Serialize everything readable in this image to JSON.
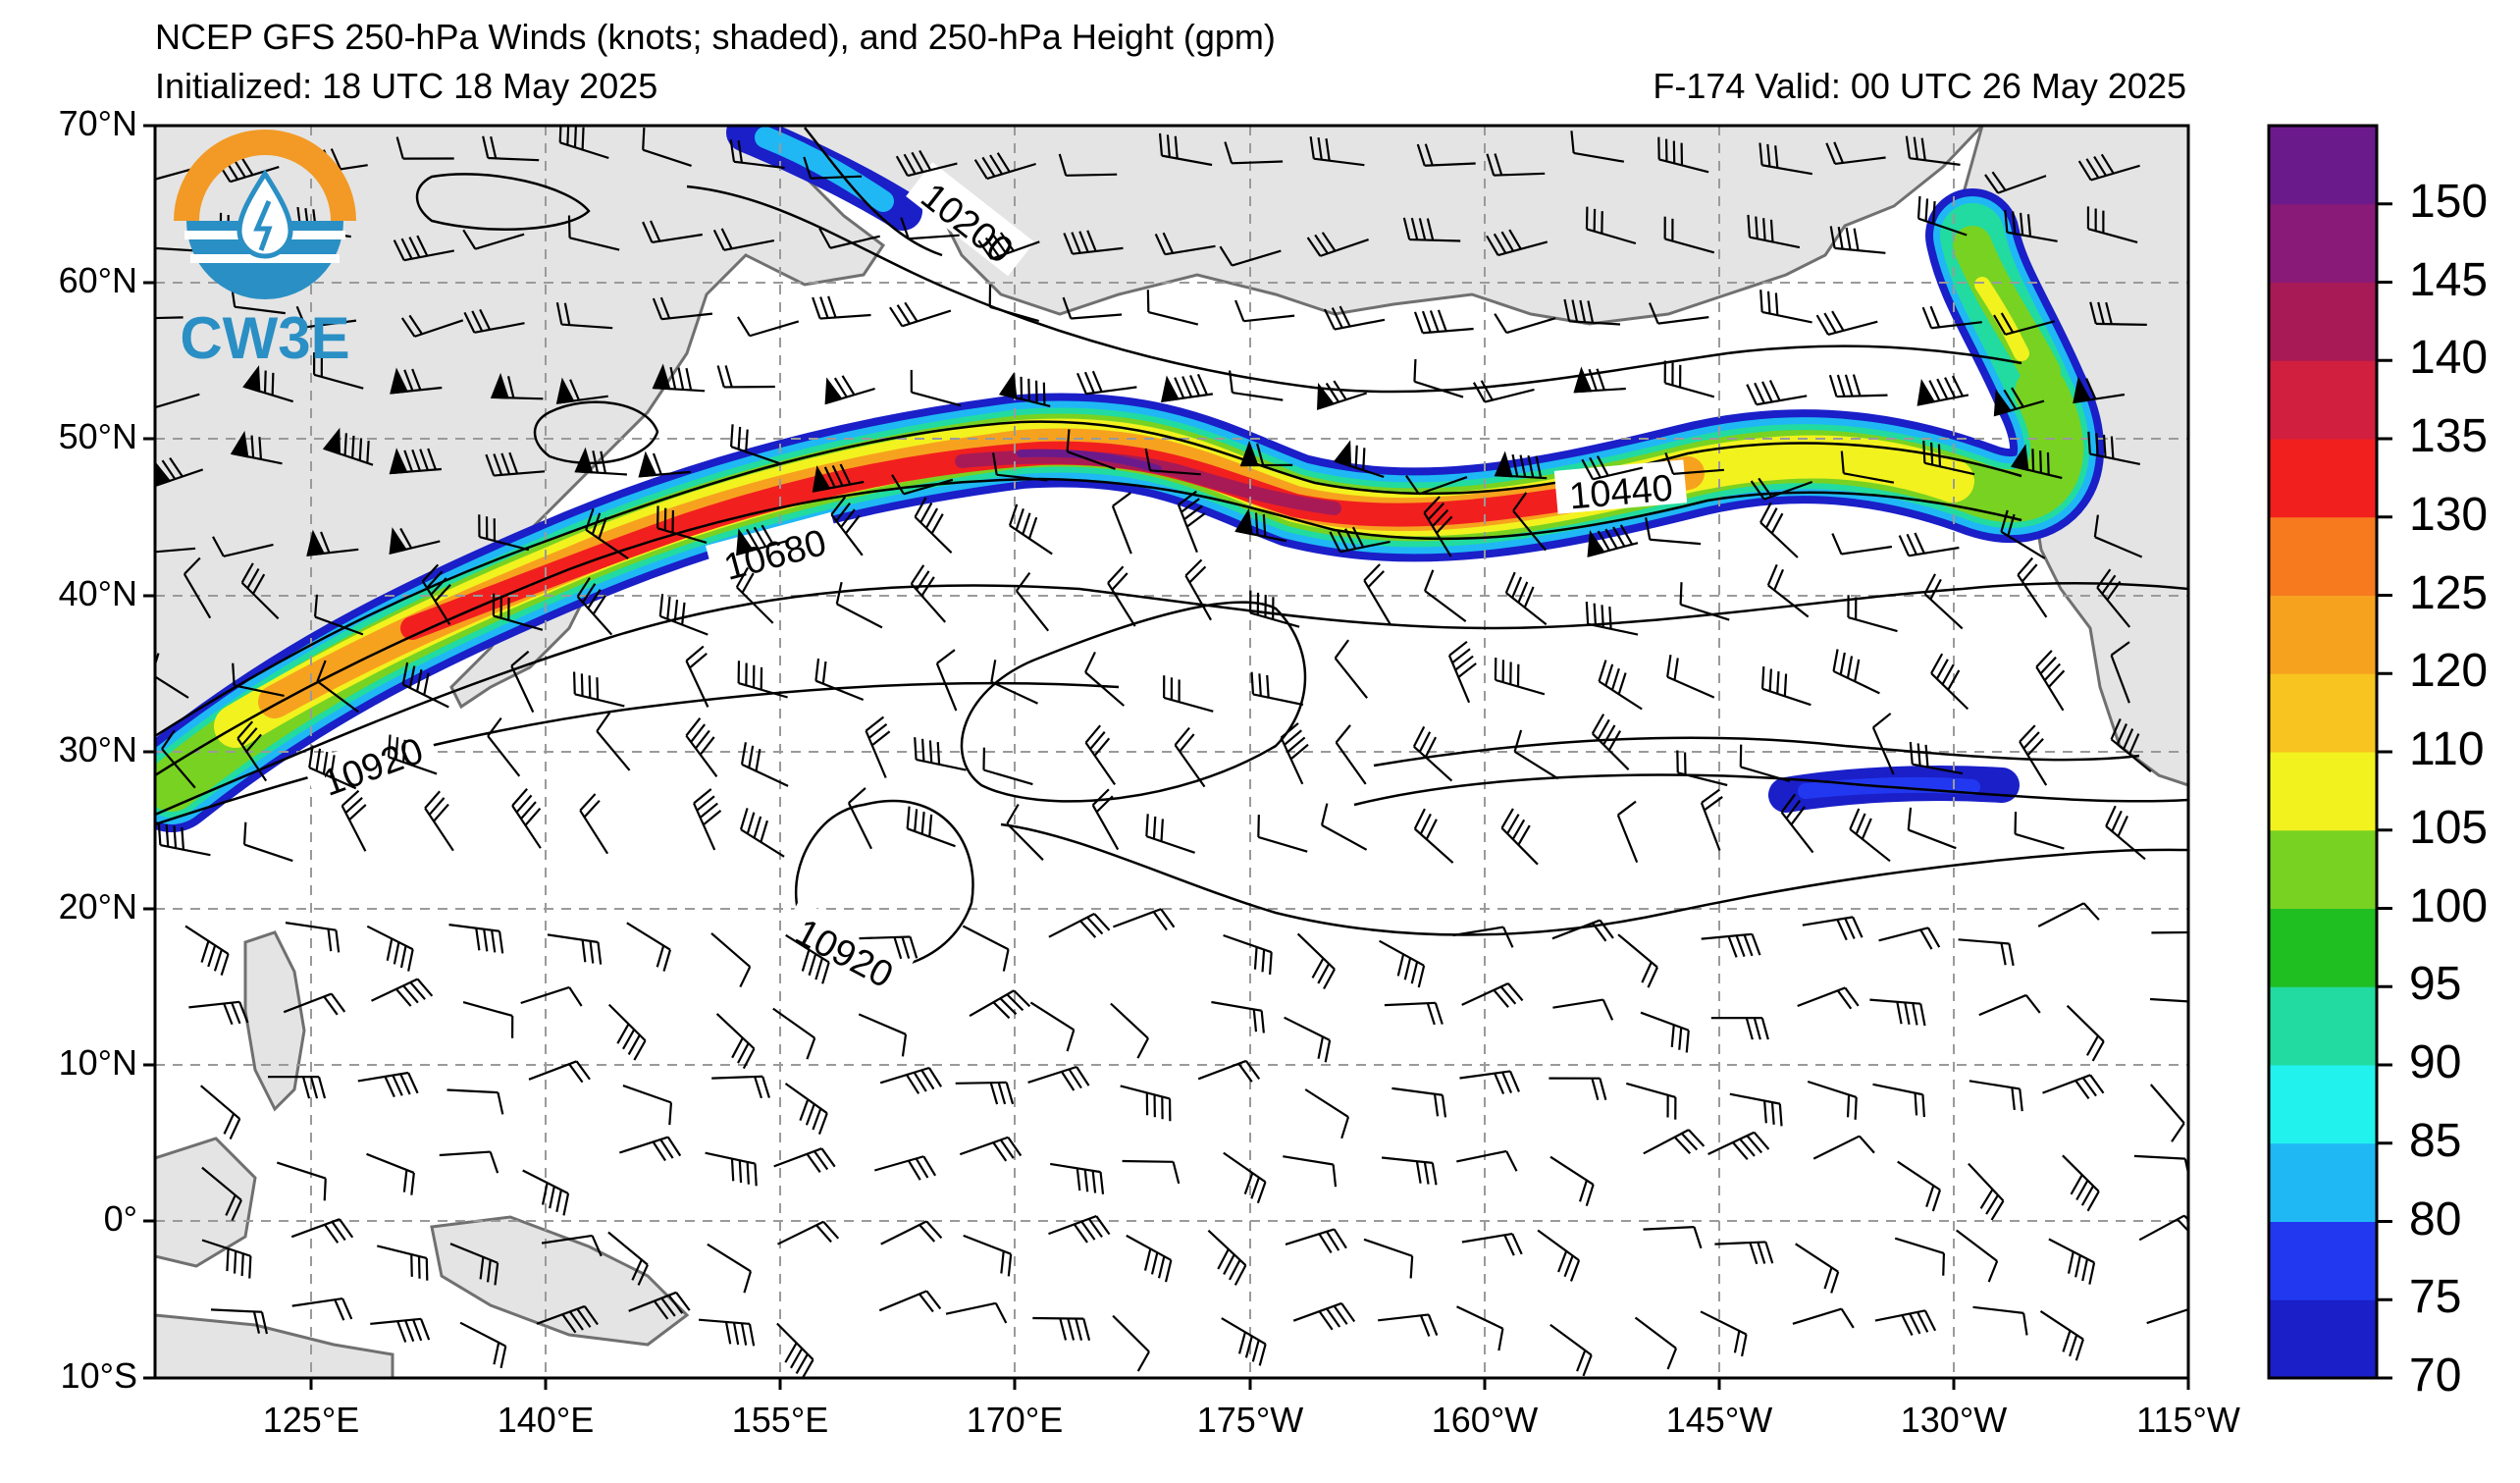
{
  "header": {
    "title": "NCEP GFS 250-hPa Winds (knots; shaded), and 250-hPa Height (gpm)",
    "initialized": "Initialized: 18 UTC 18 May 2025",
    "valid": "F-174  Valid: 00 UTC 26 May 2025"
  },
  "logo": {
    "text": "CW3E",
    "colors": {
      "orange": "#f29a25",
      "blue": "#2a8fc4"
    }
  },
  "axes": {
    "lat_labels": [
      "70°N",
      "60°N",
      "50°N",
      "40°N",
      "30°N",
      "20°N",
      "10°N",
      "0°",
      "10°S"
    ],
    "lon_labels": [
      "125°E",
      "140°E",
      "155°E",
      "170°E",
      "175°W",
      "160°W",
      "145°W",
      "130°W",
      "115°W"
    ]
  },
  "contour_labels": [
    "10200",
    "10680",
    "10440",
    "10920",
    "10920"
  ],
  "colorbar": {
    "ticks": [
      "70",
      "75",
      "80",
      "85",
      "90",
      "95",
      "100",
      "105",
      "110",
      "120",
      "125",
      "130",
      "135",
      "140",
      "145",
      "150"
    ],
    "colors": [
      "#1a1fc8",
      "#2238f0",
      "#1fb8f5",
      "#22f2ee",
      "#22dba0",
      "#1fbf22",
      "#78d222",
      "#f2f21f",
      "#f8c41f",
      "#f7a21f",
      "#f77a1f",
      "#f21f1f",
      "#d01f3f",
      "#a81a55",
      "#8a1a78",
      "#6b1a8c"
    ]
  },
  "colors": {
    "land": "#e4e4e4",
    "coast": "#707070",
    "grid": "#9a9a9a"
  }
}
